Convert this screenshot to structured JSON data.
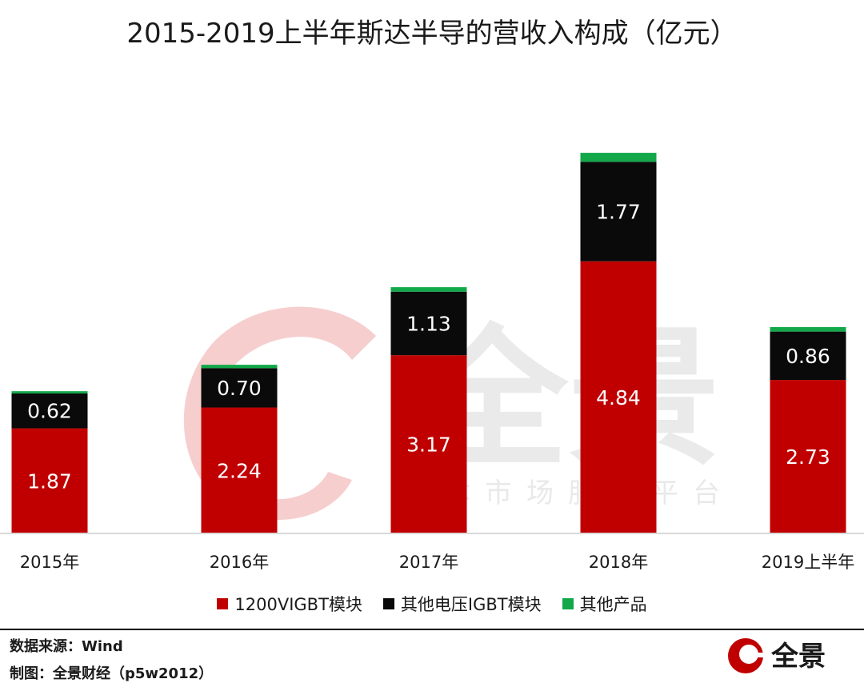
{
  "title": "2015-2019上半年斯达半导的营收入构成（亿元）",
  "chart_data": {
    "type": "bar",
    "stacked": true,
    "categories": [
      "2015年",
      "2016年",
      "2017年",
      "2018年",
      "2019上半年"
    ],
    "series": [
      {
        "name": "1200VIGBT模块",
        "values": [
          1.87,
          2.24,
          3.17,
          4.84,
          2.73
        ],
        "color": "#c00000"
      },
      {
        "name": "其他电压IGBT模块",
        "values": [
          0.62,
          0.7,
          1.13,
          1.77,
          0.86
        ],
        "color": "#0a0a0a"
      },
      {
        "name": "其他产品",
        "values": [
          0.04,
          0.06,
          0.08,
          0.16,
          0.08
        ],
        "color": "#12a84a"
      }
    ],
    "data_labels": [
      [
        "1.87",
        "2.24",
        "3.17",
        "4.84",
        "2.73"
      ],
      [
        "0.62",
        "0.70",
        "1.13",
        "1.77",
        "0.86"
      ]
    ],
    "ylim": [
      0,
      7.0
    ],
    "grid": false,
    "legend": "bottom"
  },
  "footer": {
    "source": "数据来源：Wind",
    "made_by": "制图：全景财经（p5w2012）"
  },
  "watermark": {
    "brand": "全景",
    "tagline": "资本市场服务平台"
  },
  "colors": {
    "accent": "#c00000",
    "watermark": "#f5c6c6",
    "watermark_text": "#e4e4e4"
  }
}
